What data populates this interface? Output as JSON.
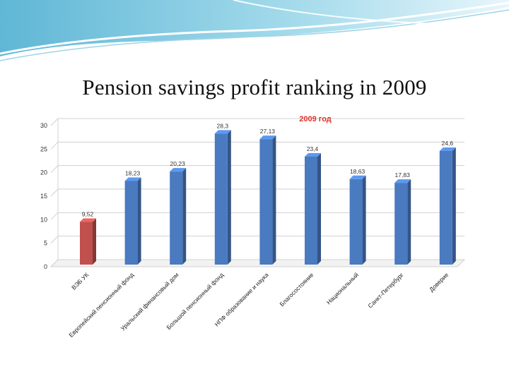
{
  "slide": {
    "title": "Pension savings profit ranking  in 2009"
  },
  "colors": {
    "bar_default": "#4a7ac0",
    "bar_highlight": "#c0504d",
    "chart_title": "#e0302a",
    "gridline": "#d0d0d0",
    "header_wave": "#7fc5df"
  },
  "chart_data": {
    "type": "bar",
    "title": "2009 год",
    "categories": [
      "ВЭБ УК",
      "Европейский пенсионный фонд",
      "Уральский финансовый дом",
      "Большой пенсионный фонд",
      "НПФ образование и наука",
      "Благосостояние",
      "Национальный",
      "Санкт-Петербург",
      "Доверие"
    ],
    "values": [
      9.52,
      18.23,
      20.23,
      28.3,
      27.13,
      23.4,
      18.63,
      17.83,
      24.6
    ],
    "value_labels": [
      "9,52",
      "18,23",
      "20,23",
      "28,3",
      "27,13",
      "23,4",
      "18,63",
      "17,83",
      "24,6"
    ],
    "highlight_index": 0,
    "ylim": [
      0,
      30
    ],
    "yticks": [
      0,
      5,
      10,
      15,
      20,
      25,
      30
    ],
    "grid": true,
    "legend": "none",
    "xlabel": "",
    "ylabel": ""
  }
}
